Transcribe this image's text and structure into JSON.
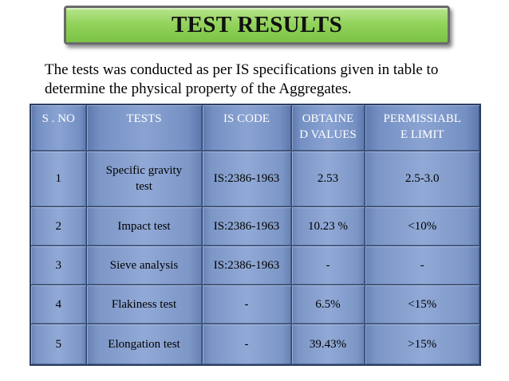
{
  "title": "TEST RESULTS",
  "intro": {
    "line1": "The tests was conducted as per IS specifications given in table  to",
    "line2": "determine the physical property of the Aggregates."
  },
  "table": {
    "headers": {
      "sno": "S . NO",
      "tests": "TESTS",
      "is_code": "IS CODE",
      "obtained_line1": "OBTAINE",
      "obtained_line2": "D VALUES",
      "permissible_line1": "PERMISSIABL",
      "permissible_line2": "E LIMIT"
    },
    "rows": [
      {
        "sno": "1",
        "test_line1": "Specific gravity",
        "test_line2": "test",
        "is_code": "IS:2386-1963",
        "obtained": "2.53",
        "permissible": "2.5-3.0"
      },
      {
        "sno": "2",
        "test_line1": "Impact test",
        "test_line2": "",
        "is_code": "IS:2386-1963",
        "obtained": "10.23 %",
        "permissible": "<10%"
      },
      {
        "sno": "3",
        "test_line1": "Sieve analysis",
        "test_line2": "",
        "is_code": "IS:2386-1963",
        "obtained": "-",
        "permissible": "-"
      },
      {
        "sno": "4",
        "test_line1": "Flakiness test",
        "test_line2": "",
        "is_code": "-",
        "obtained": "6.5%",
        "permissible": "<15%"
      },
      {
        "sno": "5",
        "test_line1": "Elongation test",
        "test_line2": "",
        "is_code": "-",
        "obtained": "39.43%",
        "permissible": ">15%"
      }
    ]
  },
  "colors": {
    "banner_green": "#93d35c",
    "table_blue": "#7c96c6",
    "header_text": "#ffffff"
  }
}
